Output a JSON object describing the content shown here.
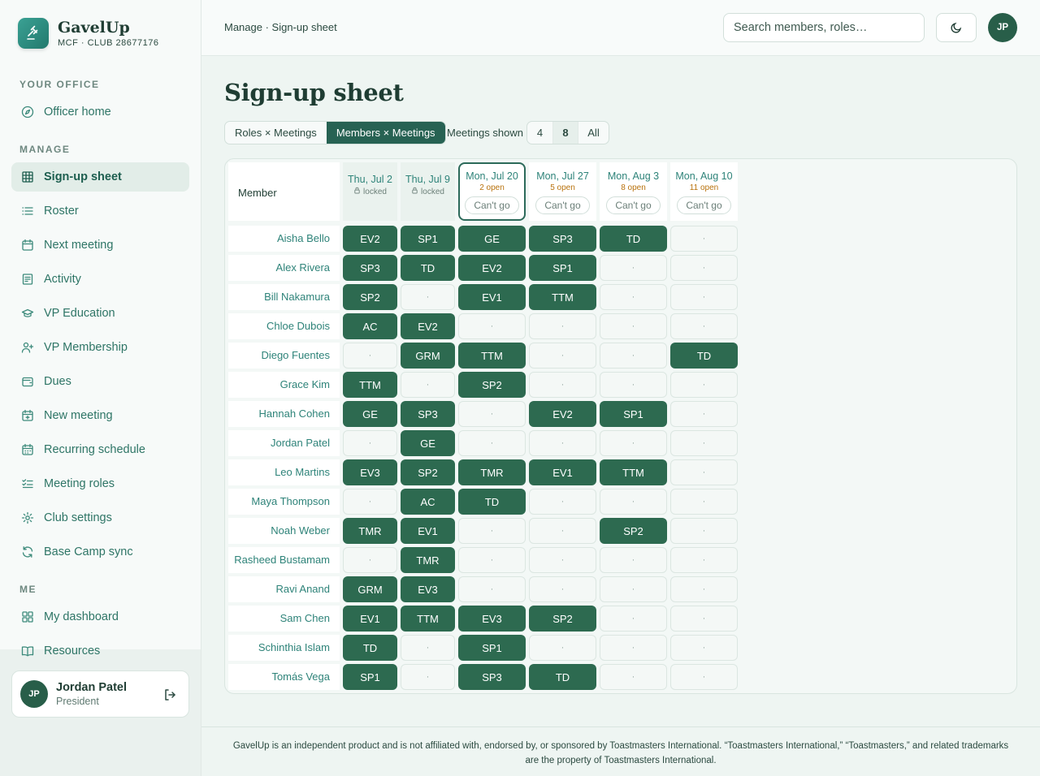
{
  "brand": {
    "name": "GavelUp",
    "sub": "MCF · CLUB 28677176"
  },
  "nav": {
    "section_office": "YOUR OFFICE",
    "section_manage": "MANAGE",
    "section_me": "ME",
    "office_items": [
      {
        "label": "Officer home",
        "icon": "compass-icon"
      }
    ],
    "manage_items": [
      {
        "label": "Sign-up sheet",
        "icon": "grid-icon",
        "active": true
      },
      {
        "label": "Roster",
        "icon": "list-icon"
      },
      {
        "label": "Next meeting",
        "icon": "calendar-icon"
      },
      {
        "label": "Activity",
        "icon": "activity-icon"
      },
      {
        "label": "VP Education",
        "icon": "graduation-cap-icon"
      },
      {
        "label": "VP Membership",
        "icon": "user-plus-icon"
      },
      {
        "label": "Dues",
        "icon": "wallet-icon"
      },
      {
        "label": "New meeting",
        "icon": "calendar-plus-icon"
      },
      {
        "label": "Recurring schedule",
        "icon": "calendar-repeat-icon"
      },
      {
        "label": "Meeting roles",
        "icon": "checklist-icon"
      },
      {
        "label": "Club settings",
        "icon": "gear-icon"
      },
      {
        "label": "Base Camp sync",
        "icon": "refresh-icon"
      }
    ],
    "me_items": [
      {
        "label": "My dashboard",
        "icon": "dashboard-icon"
      },
      {
        "label": "Resources",
        "icon": "book-icon"
      }
    ]
  },
  "user": {
    "initials": "JP",
    "name": "Jordan Patel",
    "role": "President"
  },
  "topbar": {
    "breadcrumb": "Manage · Sign-up sheet",
    "search_placeholder": "Search members, roles…",
    "avatar_initials": "JP"
  },
  "page": {
    "title": "Sign-up sheet",
    "view_tabs": [
      "Roles × Meetings",
      "Members × Meetings"
    ],
    "active_view": 1,
    "meetings_shown_label": "Meetings shown",
    "meetings_shown_options": [
      "4",
      "8",
      "All"
    ],
    "meetings_shown_selected": 1
  },
  "grid": {
    "member_header": "Member",
    "cant_go_label": "Can't go",
    "empty_marker": "·",
    "meetings": [
      {
        "date": "Thu, Jul 2",
        "status": "locked",
        "state": "locked"
      },
      {
        "date": "Thu, Jul 9",
        "status": "locked",
        "state": "locked"
      },
      {
        "date": "Mon, Jul 20",
        "status": "2 open",
        "state": "current"
      },
      {
        "date": "Mon, Jul 27",
        "status": "5 open",
        "state": "open"
      },
      {
        "date": "Mon, Aug 3",
        "status": "8 open",
        "state": "open"
      },
      {
        "date": "Mon, Aug 10",
        "status": "11 open",
        "state": "open"
      }
    ],
    "members": [
      {
        "name": "Aisha Bello",
        "roles": [
          "EV2",
          "SP1",
          "GE",
          "SP3",
          "TD",
          ""
        ]
      },
      {
        "name": "Alex Rivera",
        "roles": [
          "SP3",
          "TD",
          "EV2",
          "SP1",
          "",
          ""
        ]
      },
      {
        "name": "Bill Nakamura",
        "roles": [
          "SP2",
          "",
          "EV1",
          "TTM",
          "",
          ""
        ]
      },
      {
        "name": "Chloe Dubois",
        "roles": [
          "AC",
          "EV2",
          "",
          "",
          "",
          ""
        ]
      },
      {
        "name": "Diego Fuentes",
        "roles": [
          "",
          "GRM",
          "TTM",
          "",
          "",
          "TD"
        ]
      },
      {
        "name": "Grace Kim",
        "roles": [
          "TTM",
          "",
          "SP2",
          "",
          "",
          ""
        ]
      },
      {
        "name": "Hannah Cohen",
        "roles": [
          "GE",
          "SP3",
          "",
          "EV2",
          "SP1",
          ""
        ]
      },
      {
        "name": "Jordan Patel",
        "roles": [
          "",
          "GE",
          "",
          "",
          "",
          ""
        ]
      },
      {
        "name": "Leo Martins",
        "roles": [
          "EV3",
          "SP2",
          "TMR",
          "EV1",
          "TTM",
          ""
        ]
      },
      {
        "name": "Maya Thompson",
        "roles": [
          "",
          "AC",
          "TD",
          "",
          "",
          ""
        ]
      },
      {
        "name": "Noah Weber",
        "roles": [
          "TMR",
          "EV1",
          "",
          "",
          "SP2",
          ""
        ]
      },
      {
        "name": "Rasheed Bustamam",
        "roles": [
          "",
          "TMR",
          "",
          "",
          "",
          ""
        ]
      },
      {
        "name": "Ravi Anand",
        "roles": [
          "GRM",
          "EV3",
          "",
          "",
          "",
          ""
        ]
      },
      {
        "name": "Sam Chen",
        "roles": [
          "EV1",
          "TTM",
          "EV3",
          "SP2",
          "",
          ""
        ]
      },
      {
        "name": "Schinthia Islam",
        "roles": [
          "TD",
          "",
          "SP1",
          "",
          "",
          ""
        ]
      },
      {
        "name": "Tomás Vega",
        "roles": [
          "SP1",
          "",
          "SP3",
          "TD",
          "",
          ""
        ]
      }
    ]
  },
  "footer": {
    "disclaimer": "GavelUp is an independent product and is not affiliated with, endorsed by, or sponsored by Toastmasters International. “Toastmasters International,” “Toastmasters,” and related trademarks are the property of Toastmasters International."
  },
  "colors": {
    "accent": "#276253",
    "filled_cell": "#2d6a50",
    "link_text": "#2e8379",
    "open_status": "#b8720d"
  }
}
